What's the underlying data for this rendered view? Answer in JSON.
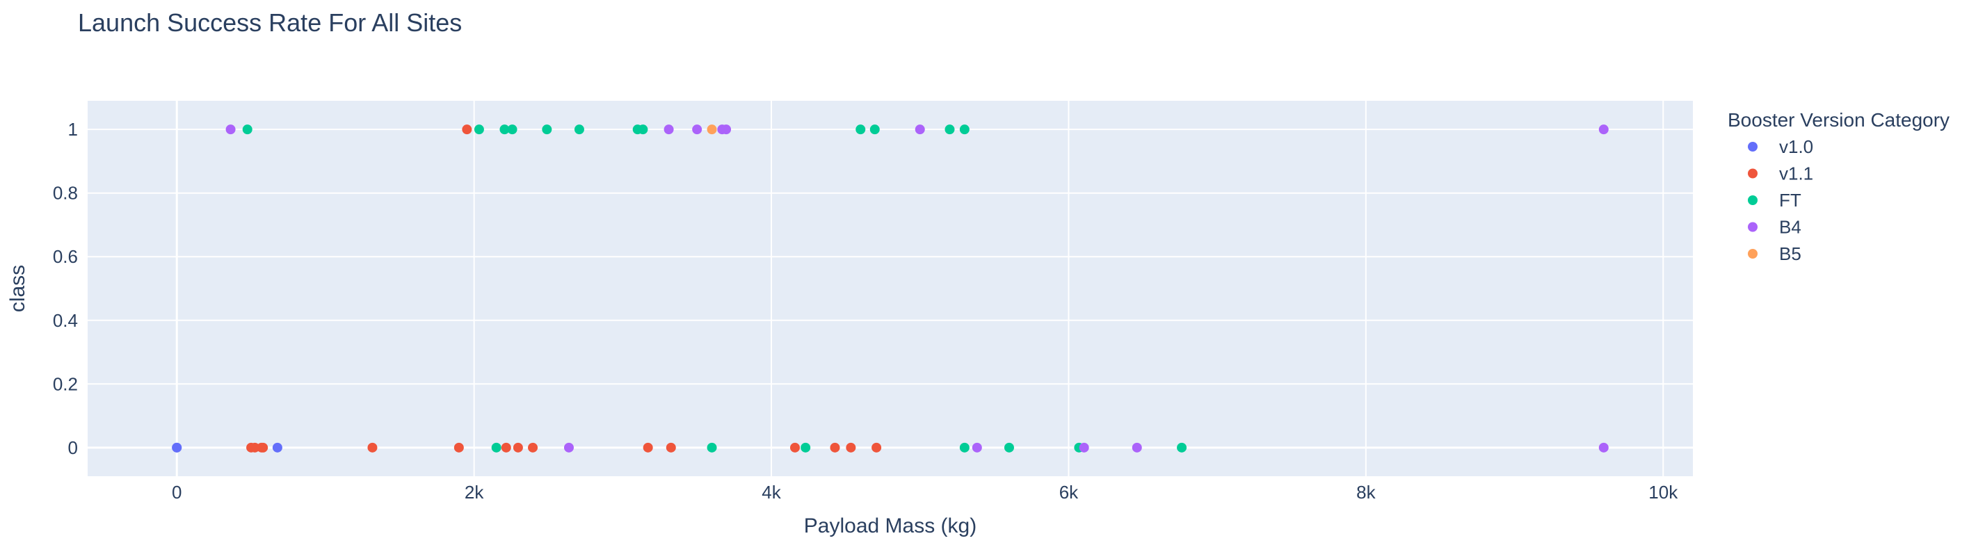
{
  "chart_data": {
    "type": "scatter",
    "title": "Launch Success Rate For All Sites",
    "xlabel": "Payload Mass (kg)",
    "ylabel": "class",
    "xlim": [
      -600,
      10200
    ],
    "ylim": [
      -0.09,
      1.09
    ],
    "x_ticks": [
      0,
      2000,
      4000,
      6000,
      8000,
      10000
    ],
    "x_tick_labels": [
      "0",
      "2k",
      "4k",
      "6k",
      "8k",
      "10k"
    ],
    "y_ticks": [
      0,
      0.2,
      0.4,
      0.6,
      0.8,
      1
    ],
    "y_tick_labels": [
      "0",
      "0.2",
      "0.4",
      "0.6",
      "0.8",
      "1"
    ],
    "grid": true,
    "legend_title": "Booster Version Category",
    "legend_position": "right",
    "series": [
      {
        "name": "v1.0",
        "color": "#636efa",
        "points": [
          [
            0,
            0
          ],
          [
            0,
            0
          ],
          [
            677,
            0
          ]
        ]
      },
      {
        "name": "v1.1",
        "color": "#EF553B",
        "points": [
          [
            500,
            0
          ],
          [
            525,
            0
          ],
          [
            570,
            0
          ],
          [
            580,
            0
          ],
          [
            1316,
            0
          ],
          [
            1898,
            0
          ],
          [
            2216,
            0
          ],
          [
            2296,
            0
          ],
          [
            2395,
            0
          ],
          [
            3170,
            0
          ],
          [
            3325,
            0
          ],
          [
            4159,
            0
          ],
          [
            4428,
            0
          ],
          [
            4535,
            0
          ],
          [
            4707,
            0
          ],
          [
            1952,
            1
          ]
        ]
      },
      {
        "name": "FT",
        "color": "#00cc96",
        "points": [
          [
            2150,
            0
          ],
          [
            3600,
            0
          ],
          [
            4230,
            0
          ],
          [
            5300,
            0
          ],
          [
            5600,
            0
          ],
          [
            6070,
            0
          ],
          [
            6761,
            0
          ],
          [
            475,
            1
          ],
          [
            2034,
            1
          ],
          [
            2205,
            1
          ],
          [
            2257,
            1
          ],
          [
            2490,
            1
          ],
          [
            2708,
            1
          ],
          [
            3100,
            1
          ],
          [
            3136,
            1
          ],
          [
            4600,
            1
          ],
          [
            4696,
            1
          ],
          [
            5200,
            1
          ],
          [
            5300,
            1
          ]
        ]
      },
      {
        "name": "B4",
        "color": "#ab63fa",
        "points": [
          [
            2638,
            0
          ],
          [
            5384,
            0
          ],
          [
            6104,
            0
          ],
          [
            6460,
            0
          ],
          [
            9600,
            0
          ],
          [
            362,
            1
          ],
          [
            3310,
            1
          ],
          [
            3500,
            1
          ],
          [
            3669,
            1
          ],
          [
            3696,
            1
          ],
          [
            5000,
            1
          ],
          [
            9600,
            1
          ]
        ]
      },
      {
        "name": "B5",
        "color": "#FFA15A",
        "points": [
          [
            3600,
            1
          ]
        ]
      }
    ]
  }
}
